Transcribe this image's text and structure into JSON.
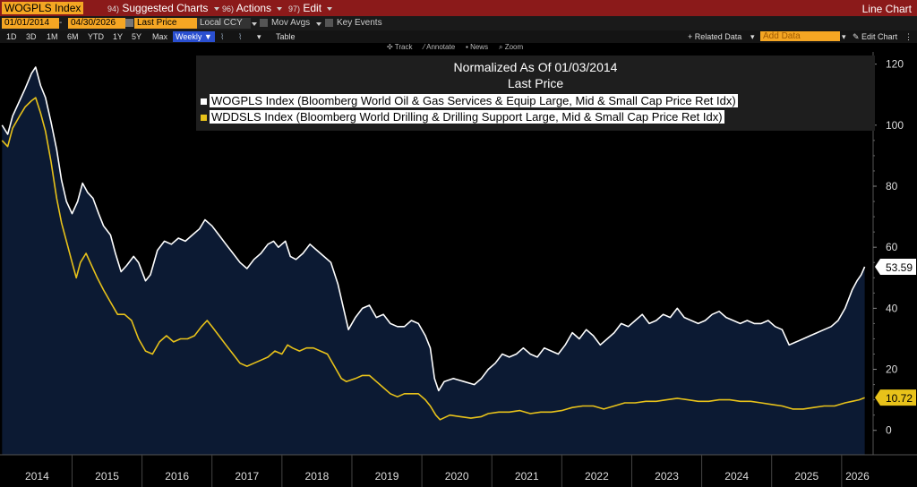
{
  "toolbar1": {
    "ticker": "WOGPLS Index",
    "menus": [
      {
        "fkey": "94)",
        "label": "Suggested Charts"
      },
      {
        "fkey": "96)",
        "label": "Actions"
      },
      {
        "fkey": "97)",
        "label": "Edit"
      }
    ],
    "chart_type": "Line Chart"
  },
  "toolbar2": {
    "start_date": "01/01/2014",
    "end_date": "04/30/2026",
    "field": "Last Price",
    "currency": "Local CCY",
    "mov_avgs": "Mov Avgs",
    "key_events": "Key Events"
  },
  "toolbar3": {
    "periods": [
      "1D",
      "3D",
      "1M",
      "6M",
      "YTD",
      "1Y",
      "5Y",
      "Max"
    ],
    "frequency": "Weekly",
    "table": "Table",
    "related_data": "+ Related Data",
    "add_data": "Add Data",
    "edit_chart": "Edit Chart"
  },
  "toolbar4": {
    "tools": [
      "Track",
      "Annotate",
      "News",
      "Zoom"
    ]
  },
  "colors": {
    "series1": "#ffffff",
    "series2": "#e8c21a",
    "fill": "#0c1a33",
    "header": "#8b1a1a",
    "field_bg": "#f5a623"
  },
  "chart_data": {
    "type": "line",
    "title": "Normalized As Of 01/03/2014",
    "subtitle": "Last Price",
    "xlabel": "",
    "ylabel": "",
    "ylim": [
      -8,
      124
    ],
    "y_ticks": [
      0,
      20,
      40,
      60,
      80,
      100,
      120
    ],
    "x_ticks": [
      "2014",
      "2015",
      "2016",
      "2017",
      "2018",
      "2019",
      "2020",
      "2021",
      "2022",
      "2023",
      "2024",
      "2025",
      "2026"
    ],
    "legend_position": "top",
    "series": [
      {
        "name": "WOGPLS Index (Bloomberg World Oil & Gas Services & Equip Large, Mid & Small Cap Price Ret Idx)",
        "last_value_label": "53.59",
        "color": "#ffffff",
        "points": [
          [
            2014.0,
            100
          ],
          [
            2014.08,
            97
          ],
          [
            2014.15,
            103
          ],
          [
            2014.25,
            108
          ],
          [
            2014.33,
            112
          ],
          [
            2014.42,
            117
          ],
          [
            2014.48,
            119
          ],
          [
            2014.55,
            113
          ],
          [
            2014.62,
            109
          ],
          [
            2014.7,
            101
          ],
          [
            2014.78,
            92
          ],
          [
            2014.85,
            82
          ],
          [
            2014.92,
            75
          ],
          [
            2015.0,
            71
          ],
          [
            2015.08,
            75
          ],
          [
            2015.15,
            81
          ],
          [
            2015.22,
            78
          ],
          [
            2015.3,
            76
          ],
          [
            2015.38,
            71
          ],
          [
            2015.45,
            67
          ],
          [
            2015.55,
            64
          ],
          [
            2015.62,
            58
          ],
          [
            2015.7,
            52
          ],
          [
            2015.78,
            54
          ],
          [
            2015.88,
            57
          ],
          [
            2015.95,
            55
          ],
          [
            2016.05,
            49
          ],
          [
            2016.12,
            51
          ],
          [
            2016.22,
            59
          ],
          [
            2016.32,
            62
          ],
          [
            2016.42,
            61
          ],
          [
            2016.52,
            63
          ],
          [
            2016.62,
            62
          ],
          [
            2016.72,
            64
          ],
          [
            2016.82,
            66
          ],
          [
            2016.9,
            69
          ],
          [
            2017.0,
            67
          ],
          [
            2017.1,
            64
          ],
          [
            2017.2,
            61
          ],
          [
            2017.3,
            58
          ],
          [
            2017.4,
            55
          ],
          [
            2017.5,
            53
          ],
          [
            2017.6,
            56
          ],
          [
            2017.7,
            58
          ],
          [
            2017.8,
            61
          ],
          [
            2017.88,
            62
          ],
          [
            2017.95,
            60
          ],
          [
            2018.05,
            62
          ],
          [
            2018.12,
            57
          ],
          [
            2018.2,
            56
          ],
          [
            2018.3,
            58
          ],
          [
            2018.4,
            61
          ],
          [
            2018.5,
            59
          ],
          [
            2018.6,
            57
          ],
          [
            2018.7,
            55
          ],
          [
            2018.8,
            48
          ],
          [
            2018.88,
            40
          ],
          [
            2018.95,
            33
          ],
          [
            2019.05,
            37
          ],
          [
            2019.15,
            40
          ],
          [
            2019.25,
            41
          ],
          [
            2019.35,
            37
          ],
          [
            2019.45,
            38
          ],
          [
            2019.55,
            35
          ],
          [
            2019.65,
            34
          ],
          [
            2019.75,
            34
          ],
          [
            2019.85,
            36
          ],
          [
            2019.95,
            35
          ],
          [
            2020.05,
            31
          ],
          [
            2020.12,
            27
          ],
          [
            2020.18,
            17
          ],
          [
            2020.24,
            13
          ],
          [
            2020.32,
            16
          ],
          [
            2020.45,
            17
          ],
          [
            2020.6,
            16
          ],
          [
            2020.75,
            15
          ],
          [
            2020.85,
            17
          ],
          [
            2020.95,
            20
          ],
          [
            2021.05,
            22
          ],
          [
            2021.15,
            25
          ],
          [
            2021.25,
            24
          ],
          [
            2021.35,
            25
          ],
          [
            2021.45,
            27
          ],
          [
            2021.55,
            25
          ],
          [
            2021.65,
            24
          ],
          [
            2021.75,
            27
          ],
          [
            2021.85,
            26
          ],
          [
            2021.95,
            25
          ],
          [
            2022.05,
            28
          ],
          [
            2022.15,
            32
          ],
          [
            2022.25,
            30
          ],
          [
            2022.35,
            33
          ],
          [
            2022.45,
            31
          ],
          [
            2022.55,
            28
          ],
          [
            2022.65,
            30
          ],
          [
            2022.75,
            32
          ],
          [
            2022.85,
            35
          ],
          [
            2022.95,
            34
          ],
          [
            2023.05,
            36
          ],
          [
            2023.15,
            38
          ],
          [
            2023.25,
            35
          ],
          [
            2023.35,
            36
          ],
          [
            2023.45,
            38
          ],
          [
            2023.55,
            37
          ],
          [
            2023.65,
            40
          ],
          [
            2023.75,
            37
          ],
          [
            2023.85,
            36
          ],
          [
            2023.95,
            35
          ],
          [
            2024.05,
            36
          ],
          [
            2024.15,
            38
          ],
          [
            2024.25,
            39
          ],
          [
            2024.35,
            37
          ],
          [
            2024.45,
            36
          ],
          [
            2024.55,
            35
          ],
          [
            2024.65,
            36
          ],
          [
            2024.75,
            35
          ],
          [
            2024.85,
            35
          ],
          [
            2024.95,
            36
          ],
          [
            2025.05,
            34
          ],
          [
            2025.15,
            33
          ],
          [
            2025.25,
            28
          ],
          [
            2025.35,
            29
          ],
          [
            2025.45,
            30
          ],
          [
            2025.55,
            31
          ],
          [
            2025.65,
            32
          ],
          [
            2025.75,
            33
          ],
          [
            2025.85,
            34
          ],
          [
            2025.95,
            36
          ],
          [
            2026.05,
            40
          ],
          [
            2026.15,
            46
          ],
          [
            2026.22,
            49
          ],
          [
            2026.28,
            51
          ],
          [
            2026.33,
            53.59
          ]
        ]
      },
      {
        "name": "WDDSLS Index (Bloomberg World Drilling & Drilling Support Large, Mid & Small Cap Price Ret Idx)",
        "last_value_label": "10.72",
        "color": "#e8c21a",
        "points": [
          [
            2014.0,
            95
          ],
          [
            2014.08,
            93
          ],
          [
            2014.15,
            99
          ],
          [
            2014.25,
            103
          ],
          [
            2014.33,
            106
          ],
          [
            2014.42,
            108
          ],
          [
            2014.48,
            109
          ],
          [
            2014.55,
            104
          ],
          [
            2014.62,
            98
          ],
          [
            2014.7,
            88
          ],
          [
            2014.78,
            76
          ],
          [
            2014.85,
            68
          ],
          [
            2014.92,
            62
          ],
          [
            2015.0,
            55
          ],
          [
            2015.06,
            50
          ],
          [
            2015.12,
            55
          ],
          [
            2015.2,
            58
          ],
          [
            2015.28,
            54
          ],
          [
            2015.36,
            50
          ],
          [
            2015.45,
            46
          ],
          [
            2015.55,
            42
          ],
          [
            2015.65,
            38
          ],
          [
            2015.75,
            38
          ],
          [
            2015.85,
            36
          ],
          [
            2015.95,
            30
          ],
          [
            2016.05,
            26
          ],
          [
            2016.15,
            25
          ],
          [
            2016.25,
            29
          ],
          [
            2016.35,
            31
          ],
          [
            2016.45,
            29
          ],
          [
            2016.55,
            30
          ],
          [
            2016.65,
            30
          ],
          [
            2016.75,
            31
          ],
          [
            2016.85,
            34
          ],
          [
            2016.93,
            36
          ],
          [
            2017.0,
            34
          ],
          [
            2017.1,
            31
          ],
          [
            2017.2,
            28
          ],
          [
            2017.3,
            25
          ],
          [
            2017.4,
            22
          ],
          [
            2017.5,
            21
          ],
          [
            2017.6,
            22
          ],
          [
            2017.7,
            23
          ],
          [
            2017.8,
            24
          ],
          [
            2017.9,
            26
          ],
          [
            2018.0,
            25
          ],
          [
            2018.08,
            28
          ],
          [
            2018.15,
            27
          ],
          [
            2018.25,
            26
          ],
          [
            2018.35,
            27
          ],
          [
            2018.45,
            27
          ],
          [
            2018.55,
            26
          ],
          [
            2018.65,
            25
          ],
          [
            2018.75,
            21
          ],
          [
            2018.85,
            17
          ],
          [
            2018.92,
            16
          ],
          [
            2019.05,
            17
          ],
          [
            2019.15,
            18
          ],
          [
            2019.25,
            18
          ],
          [
            2019.35,
            16
          ],
          [
            2019.45,
            14
          ],
          [
            2019.55,
            12
          ],
          [
            2019.65,
            11
          ],
          [
            2019.75,
            12
          ],
          [
            2019.85,
            12
          ],
          [
            2019.95,
            12
          ],
          [
            2020.05,
            10
          ],
          [
            2020.12,
            8
          ],
          [
            2020.2,
            5
          ],
          [
            2020.26,
            3.5
          ],
          [
            2020.4,
            5
          ],
          [
            2020.55,
            4.5
          ],
          [
            2020.7,
            4
          ],
          [
            2020.85,
            4.5
          ],
          [
            2020.95,
            5.5
          ],
          [
            2021.1,
            6
          ],
          [
            2021.25,
            6
          ],
          [
            2021.4,
            6.5
          ],
          [
            2021.55,
            5.5
          ],
          [
            2021.7,
            6
          ],
          [
            2021.85,
            6
          ],
          [
            2022.0,
            6.5
          ],
          [
            2022.15,
            7.5
          ],
          [
            2022.3,
            8
          ],
          [
            2022.45,
            8
          ],
          [
            2022.6,
            7
          ],
          [
            2022.75,
            8
          ],
          [
            2022.9,
            9
          ],
          [
            2023.05,
            9
          ],
          [
            2023.2,
            9.5
          ],
          [
            2023.35,
            9.5
          ],
          [
            2023.5,
            10
          ],
          [
            2023.65,
            10.5
          ],
          [
            2023.8,
            10
          ],
          [
            2023.95,
            9.5
          ],
          [
            2024.1,
            9.5
          ],
          [
            2024.25,
            10
          ],
          [
            2024.4,
            10
          ],
          [
            2024.55,
            9.5
          ],
          [
            2024.7,
            9.5
          ],
          [
            2024.85,
            9
          ],
          [
            2025.0,
            8.5
          ],
          [
            2025.15,
            8
          ],
          [
            2025.3,
            7
          ],
          [
            2025.45,
            7
          ],
          [
            2025.6,
            7.5
          ],
          [
            2025.75,
            8
          ],
          [
            2025.9,
            8
          ],
          [
            2026.05,
            9
          ],
          [
            2026.15,
            9.5
          ],
          [
            2026.25,
            10
          ],
          [
            2026.33,
            10.72
          ]
        ]
      }
    ]
  }
}
